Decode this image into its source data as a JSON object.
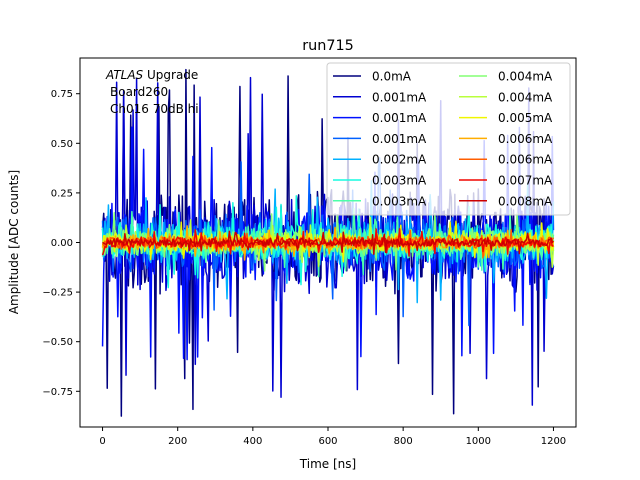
{
  "chart_data": {
    "type": "line",
    "title": "run715",
    "xlabel": "Time [ns]",
    "ylabel": "Amplitude [ADC counts]",
    "xlim": [
      -60,
      1260
    ],
    "ylim": [
      -0.93,
      0.93
    ],
    "xticks": [
      0,
      200,
      400,
      600,
      800,
      1000,
      1200
    ],
    "xtick_labels": [
      "0",
      "200",
      "400",
      "600",
      "800",
      "1000",
      "1200"
    ],
    "yticks": [
      -0.75,
      -0.5,
      -0.25,
      0.0,
      0.25,
      0.5,
      0.75
    ],
    "ytick_labels": [
      "−0.75",
      "−0.50",
      "−0.25",
      "0.00",
      "0.25",
      "0.50",
      "0.75"
    ],
    "grid": false,
    "legend_position": "top-right",
    "legend_columns": 2,
    "annotation": {
      "experiment_italic": "ATLAS",
      "experiment_suffix": " Upgrade",
      "line2": "Board260",
      "line3": "Ch016 70dB hi"
    },
    "sampling": {
      "t_start": 0,
      "t_end": 1200,
      "step_ns": 3.125
    },
    "series": [
      {
        "name": "0.0mA",
        "color": "#00007f",
        "envelope": 0.3,
        "spike_max": 0.89
      },
      {
        "name": "0.001mA",
        "color": "#0000d1",
        "envelope": 0.26,
        "spike_max": 0.84
      },
      {
        "name": "0.001mA",
        "color": "#0010ff",
        "envelope": 0.22,
        "spike_max": 0.6
      },
      {
        "name": "0.001mA",
        "color": "#0060ff",
        "envelope": 0.18,
        "spike_max": 0.45
      },
      {
        "name": "0.002mA",
        "color": "#00b0ff",
        "envelope": 0.14,
        "spike_max": 0.32
      },
      {
        "name": "0.003mA",
        "color": "#17fbe0",
        "envelope": 0.11,
        "spike_max": 0.24
      },
      {
        "name": "0.003mA",
        "color": "#4dffa9",
        "envelope": 0.09,
        "spike_max": 0.18
      },
      {
        "name": "0.004mA",
        "color": "#83ff73",
        "envelope": 0.075,
        "spike_max": 0.15
      },
      {
        "name": "0.004mA",
        "color": "#b9ff3c",
        "envelope": 0.065,
        "spike_max": 0.13
      },
      {
        "name": "0.005mA",
        "color": "#f0f600",
        "envelope": 0.055,
        "spike_max": 0.11
      },
      {
        "name": "0.006mA",
        "color": "#ffad00",
        "envelope": 0.045,
        "spike_max": 0.09
      },
      {
        "name": "0.006mA",
        "color": "#ff5e00",
        "envelope": 0.038,
        "spike_max": 0.08
      },
      {
        "name": "0.007mA",
        "color": "#f10700",
        "envelope": 0.03,
        "spike_max": 0.07
      },
      {
        "name": "0.008mA",
        "color": "#cc0000",
        "envelope": 0.024,
        "spike_max": 0.06
      }
    ]
  }
}
